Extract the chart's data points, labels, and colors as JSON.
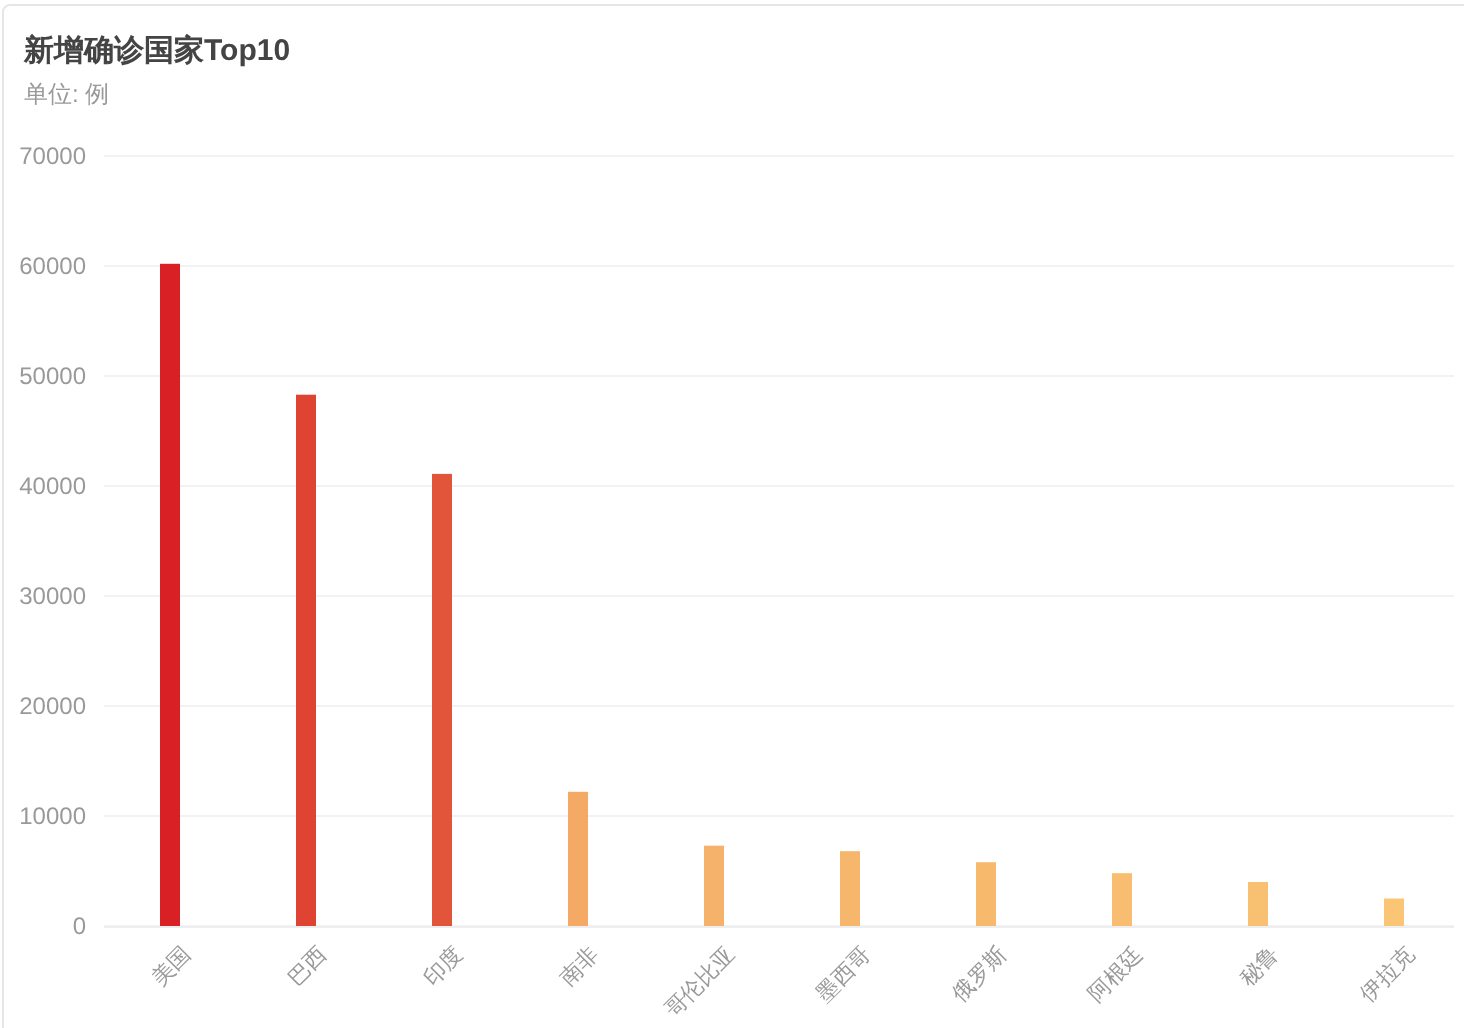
{
  "chart_data": {
    "type": "bar",
    "title": "新增确诊国家Top10",
    "subtitle": "单位: 例",
    "categories": [
      "美国",
      "巴西",
      "印度",
      "南非",
      "哥伦比亚",
      "墨西哥",
      "俄罗斯",
      "阿根廷",
      "秘鲁",
      "伊拉克"
    ],
    "values": [
      60200,
      48300,
      41100,
      12200,
      7300,
      6800,
      5800,
      4800,
      4000,
      2500
    ],
    "colors": [
      "#d92024",
      "#df4332",
      "#e2553a",
      "#f4a965",
      "#f5b26a",
      "#f6b66b",
      "#f7ba6d",
      "#f8bd70",
      "#f8c172",
      "#fac675"
    ],
    "ylim": [
      0,
      70000
    ],
    "yticks": [
      0,
      10000,
      20000,
      30000,
      40000,
      50000,
      60000,
      70000
    ],
    "grid": "y"
  }
}
